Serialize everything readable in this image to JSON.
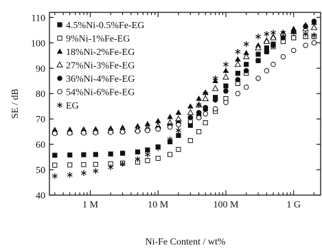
{
  "chart_data": {
    "type": "scatter",
    "title": "",
    "xlabel": "Ni-Fe Content / wt%",
    "ylabel": "SE / dB",
    "xscale": "log",
    "xlim": [
      250000.0,
      2500000000.0
    ],
    "ylim": [
      40,
      112
    ],
    "yticks": [
      40,
      50,
      60,
      70,
      80,
      90,
      100,
      110
    ],
    "xticks": [
      {
        "value": 1000000.0,
        "label": "1 M"
      },
      {
        "value": 10000000.0,
        "label": "10 M"
      },
      {
        "value": 100000000.0,
        "label": "100 M"
      },
      {
        "value": 1000000000.0,
        "label": "1 G"
      }
    ],
    "grid": false,
    "legend_position": "top-left",
    "series": [
      {
        "name": "4.5%Ni-0.5%Fe-EG",
        "marker": "filled-square",
        "x": [
          300000.0,
          500000.0,
          800000.0,
          1200000.0,
          2000000.0,
          3000000.0,
          5000000.0,
          7000000.0,
          10000000.0,
          15000000.0,
          20000000.0,
          30000000.0,
          40000000.0,
          50000000.0,
          70000000.0,
          100000000.0,
          150000000.0,
          200000000.0,
          300000000.0,
          400000000.0,
          500000000.0,
          700000000.0,
          1000000000.0,
          1500000000.0,
          2000000000.0
        ],
        "y": [
          55.7,
          55.8,
          55.9,
          56.0,
          56.2,
          56.5,
          57.0,
          57.8,
          59.0,
          61.0,
          63.5,
          67.5,
          71.0,
          74.0,
          78.5,
          83.0,
          88.0,
          91.5,
          95.5,
          98.0,
          99.5,
          101.0,
          102.0,
          102.5,
          102.5
        ]
      },
      {
        "name": "9%Ni-1%Fe-EG",
        "marker": "open-square",
        "x": [
          300000.0,
          500000.0,
          800000.0,
          1200000.0,
          2000000.0,
          3000000.0,
          5000000.0,
          7000000.0,
          10000000.0,
          15000000.0,
          20000000.0,
          30000000.0,
          40000000.0,
          50000000.0,
          70000000.0,
          100000000.0,
          150000000.0,
          200000000.0,
          300000000.0,
          400000000.0,
          500000000.0,
          700000000.0,
          1000000000.0,
          1500000000.0,
          2000000000.0
        ],
        "y": [
          51.8,
          51.9,
          52.0,
          52.1,
          52.3,
          52.6,
          53.0,
          53.6,
          54.5,
          56.0,
          58.0,
          61.5,
          65.0,
          68.5,
          73.0,
          78.0,
          84.0,
          88.0,
          93.0,
          96.5,
          98.5,
          100.5,
          102.0,
          102.5,
          102.5
        ]
      },
      {
        "name": "18%Ni-2%Fe-EG",
        "marker": "filled-triangle",
        "x": [
          300000.0,
          500000.0,
          800000.0,
          1200000.0,
          2000000.0,
          3000000.0,
          5000000.0,
          7000000.0,
          10000000.0,
          15000000.0,
          20000000.0,
          30000000.0,
          40000000.0,
          50000000.0,
          70000000.0,
          100000000.0,
          150000000.0,
          200000000.0,
          300000000.0,
          400000000.0,
          500000000.0,
          700000000.0,
          1000000000.0,
          1500000000.0,
          2000000000.0
        ],
        "y": [
          65.7,
          65.8,
          65.9,
          66.0,
          66.3,
          66.6,
          67.2,
          68.0,
          69.2,
          70.8,
          72.5,
          75.0,
          78.0,
          80.5,
          85.0,
          89.0,
          93.5,
          96.0,
          99.0,
          101.0,
          102.5,
          104.0,
          105.5,
          107.0,
          108.0
        ]
      },
      {
        "name": "27%Ni-3%Fe-EG",
        "marker": "open-triangle",
        "x": [
          300000.0,
          500000.0,
          800000.0,
          1200000.0,
          2000000.0,
          3000000.0,
          5000000.0,
          7000000.0,
          10000000.0,
          15000000.0,
          20000000.0,
          30000000.0,
          40000000.0,
          50000000.0,
          70000000.0,
          100000000.0,
          150000000.0,
          200000000.0,
          300000000.0,
          400000000.0,
          500000000.0,
          700000000.0,
          1000000000.0,
          1500000000.0,
          2000000000.0
        ],
        "y": [
          64.8,
          64.9,
          65.0,
          65.1,
          65.3,
          65.5,
          65.9,
          66.4,
          67.2,
          68.5,
          70.0,
          72.5,
          75.5,
          78.0,
          82.0,
          86.5,
          91.5,
          94.5,
          98.0,
          100.5,
          102.0,
          103.5,
          104.5,
          105.5,
          106.0
        ]
      },
      {
        "name": "36%Ni-4%Fe-EG",
        "marker": "filled-circle",
        "x": [
          300000.0,
          500000.0,
          800000.0,
          1200000.0,
          2000000.0,
          3000000.0,
          5000000.0,
          7000000.0,
          10000000.0,
          15000000.0,
          20000000.0,
          30000000.0,
          40000000.0,
          50000000.0,
          70000000.0,
          100000000.0,
          150000000.0,
          200000000.0,
          300000000.0,
          400000000.0,
          500000000.0,
          700000000.0,
          1000000000.0,
          1500000000.0,
          2000000000.0
        ],
        "y": [
          64.4,
          64.5,
          64.6,
          64.7,
          64.8,
          65.0,
          65.3,
          65.7,
          66.3,
          67.3,
          68.5,
          70.5,
          72.5,
          74.5,
          77.5,
          81.0,
          85.5,
          89.0,
          93.0,
          96.5,
          99.0,
          102.0,
          104.5,
          106.5,
          108.5
        ]
      },
      {
        "name": "54%Ni-6%Fe-EG",
        "marker": "open-circle",
        "x": [
          300000.0,
          500000.0,
          800000.0,
          1200000.0,
          2000000.0,
          3000000.0,
          5000000.0,
          7000000.0,
          10000000.0,
          15000000.0,
          20000000.0,
          30000000.0,
          40000000.0,
          50000000.0,
          70000000.0,
          100000000.0,
          150000000.0,
          200000000.0,
          300000000.0,
          400000000.0,
          500000000.0,
          700000000.0,
          1000000000.0,
          1500000000.0,
          2000000000.0
        ],
        "y": [
          64.3,
          64.4,
          64.5,
          64.6,
          64.7,
          64.9,
          65.2,
          65.5,
          66.0,
          66.8,
          67.7,
          69.0,
          70.5,
          72.0,
          74.0,
          76.5,
          80.0,
          82.5,
          86.0,
          89.0,
          91.5,
          94.5,
          97.0,
          99.0,
          100.0
        ]
      },
      {
        "name": "EG",
        "marker": "asterisk",
        "x": [
          300000.0,
          500000.0,
          800000.0,
          1200000.0,
          2000000.0,
          3000000.0,
          5000000.0,
          7000000.0,
          10000000.0,
          15000000.0,
          20000000.0,
          30000000.0,
          40000000.0,
          50000000.0,
          70000000.0,
          100000000.0,
          150000000.0,
          200000000.0,
          300000000.0,
          400000000.0,
          500000000.0,
          700000000.0,
          1000000000.0,
          1500000000.0,
          2000000000.0
        ],
        "y": [
          47.5,
          48.0,
          48.7,
          49.5,
          51.0,
          52.3,
          54.2,
          56.0,
          58.5,
          62.0,
          65.5,
          70.5,
          75.5,
          80.0,
          86.0,
          91.5,
          96.5,
          99.5,
          102.5,
          103.5,
          104.0,
          104.0,
          104.0,
          103.5,
          103.0
        ]
      }
    ]
  }
}
